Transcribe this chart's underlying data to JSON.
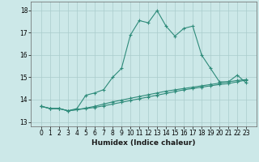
{
  "xlabel": "Humidex (Indice chaleur)",
  "x": [
    0,
    1,
    2,
    3,
    4,
    5,
    6,
    7,
    8,
    9,
    10,
    11,
    12,
    13,
    14,
    15,
    16,
    17,
    18,
    19,
    20,
    21,
    22,
    23
  ],
  "line1": [
    13.7,
    13.6,
    13.6,
    13.5,
    13.6,
    14.2,
    14.3,
    14.45,
    15.0,
    15.4,
    16.9,
    17.55,
    17.45,
    18.0,
    17.3,
    16.85,
    17.2,
    17.3,
    16.0,
    15.4,
    14.8,
    14.8,
    15.1,
    14.75
  ],
  "line2": [
    13.7,
    13.6,
    13.6,
    13.5,
    13.55,
    13.6,
    13.65,
    13.72,
    13.8,
    13.88,
    13.96,
    14.04,
    14.12,
    14.2,
    14.28,
    14.36,
    14.44,
    14.5,
    14.56,
    14.62,
    14.68,
    14.72,
    14.8,
    14.88
  ],
  "line3": [
    13.7,
    13.6,
    13.6,
    13.5,
    13.55,
    13.62,
    13.7,
    13.8,
    13.9,
    13.98,
    14.06,
    14.14,
    14.22,
    14.3,
    14.38,
    14.44,
    14.5,
    14.56,
    14.62,
    14.68,
    14.74,
    14.8,
    14.86,
    14.9
  ],
  "line_color": "#2e8b7a",
  "bg_color": "#cce8e8",
  "grid_color": "#aacccc",
  "ylim": [
    12.8,
    18.4
  ],
  "yticks": [
    13,
    14,
    15,
    16,
    17,
    18
  ],
  "xticks": [
    0,
    1,
    2,
    3,
    4,
    5,
    6,
    7,
    8,
    9,
    10,
    11,
    12,
    13,
    14,
    15,
    16,
    17,
    18,
    19,
    20,
    21,
    22,
    23
  ],
  "xlabel_fontsize": 6.5,
  "tick_fontsize": 5.5
}
